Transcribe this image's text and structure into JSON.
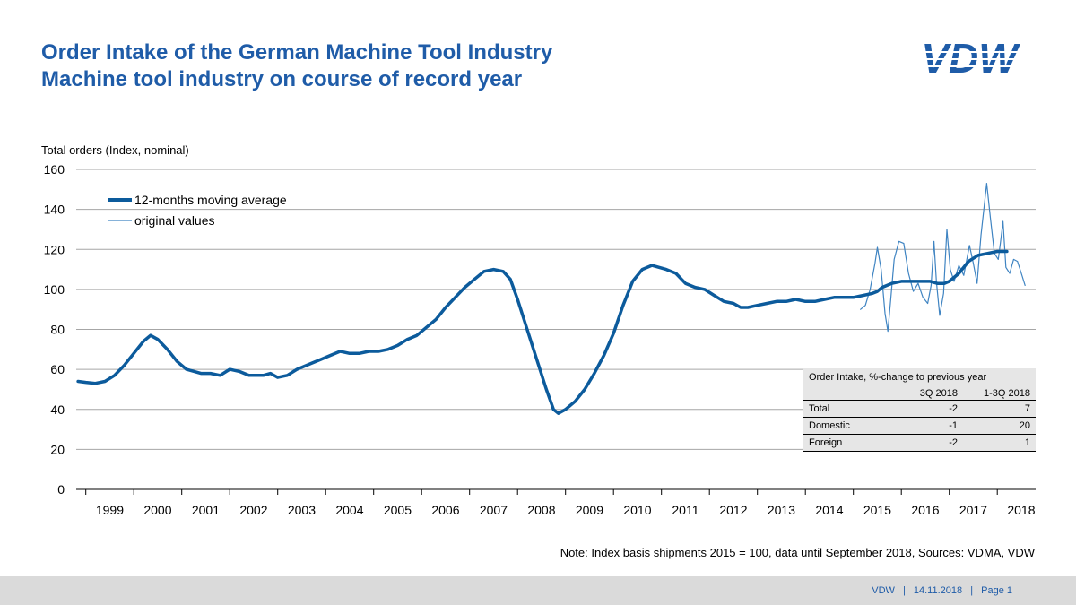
{
  "header": {
    "title_line1": "Order Intake of the German Machine Tool Industry",
    "title_line2": "Machine tool industry on course of record year",
    "logo_text": "VDW"
  },
  "note": "Note: Index basis shipments 2015 = 100, data until September 2018, Sources: VDMA,  VDW",
  "footer": {
    "org": "VDW",
    "date": "14.11.2018",
    "page": "Page 1",
    "sep": "|"
  },
  "table": {
    "caption": "Order Intake, %-change to previous year",
    "columns": [
      "",
      "3Q 2018",
      "1-3Q 2018"
    ],
    "rows": [
      {
        "label": "Total",
        "q3": "-2",
        "ytd": "7"
      },
      {
        "label": "Domestic",
        "q3": "-1",
        "ytd": "20"
      },
      {
        "label": "Foreign",
        "q3": "-2",
        "ytd": "1"
      }
    ]
  },
  "colors": {
    "accent": "#1f5ca8",
    "series_thick": "#0c5b9c",
    "series_thin": "#3f84c2",
    "grid": "#a6a6a6"
  },
  "chart_data": {
    "type": "line",
    "ylabel": "Total orders (Index,  nominal)",
    "ylim": [
      0,
      160
    ],
    "yticks": [
      0,
      20,
      40,
      60,
      80,
      100,
      120,
      140,
      160
    ],
    "xlim": [
      1998.8,
      2018.8
    ],
    "year_labels": [
      "1999",
      "2000",
      "2001",
      "2002",
      "2003",
      "2004",
      "2005",
      "2006",
      "2007",
      "2008",
      "2009",
      "2010",
      "2011",
      "2012",
      "2013",
      "2014",
      "2015",
      "2016",
      "2017",
      "2018"
    ],
    "legend": {
      "position": "top-left",
      "entries": [
        "12-months moving average",
        "original values"
      ]
    },
    "grid": "horizontal",
    "series": [
      {
        "name": "12-months moving average",
        "points": [
          [
            1998.84,
            54
          ],
          [
            1999.0,
            53.5
          ],
          [
            1999.2,
            53
          ],
          [
            1999.4,
            54
          ],
          [
            1999.6,
            57
          ],
          [
            1999.8,
            62
          ],
          [
            2000.0,
            68
          ],
          [
            2000.2,
            74
          ],
          [
            2000.35,
            77
          ],
          [
            2000.5,
            75
          ],
          [
            2000.7,
            70
          ],
          [
            2000.9,
            64
          ],
          [
            2001.1,
            60
          ],
          [
            2001.4,
            58
          ],
          [
            2001.6,
            58
          ],
          [
            2001.8,
            57
          ],
          [
            2002.0,
            60
          ],
          [
            2002.2,
            59
          ],
          [
            2002.4,
            57
          ],
          [
            2002.7,
            57
          ],
          [
            2002.85,
            58
          ],
          [
            2003.0,
            56
          ],
          [
            2003.2,
            57
          ],
          [
            2003.4,
            60
          ],
          [
            2003.7,
            63
          ],
          [
            2003.9,
            65
          ],
          [
            2004.1,
            67
          ],
          [
            2004.3,
            69
          ],
          [
            2004.5,
            68
          ],
          [
            2004.7,
            68
          ],
          [
            2004.9,
            69
          ],
          [
            2005.1,
            69
          ],
          [
            2005.3,
            70
          ],
          [
            2005.5,
            72
          ],
          [
            2005.7,
            75
          ],
          [
            2005.9,
            77
          ],
          [
            2006.1,
            81
          ],
          [
            2006.3,
            85
          ],
          [
            2006.5,
            91
          ],
          [
            2006.7,
            96
          ],
          [
            2006.9,
            101
          ],
          [
            2007.1,
            105
          ],
          [
            2007.3,
            109
          ],
          [
            2007.5,
            110
          ],
          [
            2007.7,
            109
          ],
          [
            2007.85,
            105
          ],
          [
            2008.0,
            95
          ],
          [
            2008.2,
            80
          ],
          [
            2008.4,
            65
          ],
          [
            2008.6,
            50
          ],
          [
            2008.75,
            40
          ],
          [
            2008.85,
            38
          ],
          [
            2009.0,
            40
          ],
          [
            2009.2,
            44
          ],
          [
            2009.4,
            50
          ],
          [
            2009.6,
            58
          ],
          [
            2009.8,
            67
          ],
          [
            2010.0,
            78
          ],
          [
            2010.2,
            92
          ],
          [
            2010.4,
            104
          ],
          [
            2010.6,
            110
          ],
          [
            2010.8,
            112
          ],
          [
            2010.95,
            111
          ],
          [
            2011.1,
            110
          ],
          [
            2011.3,
            108
          ],
          [
            2011.5,
            103
          ],
          [
            2011.7,
            101
          ],
          [
            2011.9,
            100
          ],
          [
            2012.1,
            97
          ],
          [
            2012.3,
            94
          ],
          [
            2012.5,
            93
          ],
          [
            2012.65,
            91
          ],
          [
            2012.8,
            91
          ],
          [
            2013.0,
            92
          ],
          [
            2013.2,
            93
          ],
          [
            2013.4,
            94
          ],
          [
            2013.6,
            94
          ],
          [
            2013.8,
            95
          ],
          [
            2014.0,
            94
          ],
          [
            2014.2,
            94
          ],
          [
            2014.4,
            95
          ],
          [
            2014.6,
            96
          ],
          [
            2014.8,
            96
          ],
          [
            2015.0,
            96
          ],
          [
            2015.2,
            97
          ],
          [
            2015.4,
            98
          ],
          [
            2015.5,
            99
          ],
          [
            2015.6,
            101
          ],
          [
            2015.8,
            103
          ],
          [
            2016.0,
            104
          ],
          [
            2016.2,
            104
          ],
          [
            2016.4,
            104
          ],
          [
            2016.6,
            104
          ],
          [
            2016.75,
            103
          ],
          [
            2016.9,
            103
          ],
          [
            2017.0,
            104
          ],
          [
            2017.2,
            108
          ],
          [
            2017.4,
            114
          ],
          [
            2017.6,
            117
          ],
          [
            2017.8,
            118
          ],
          [
            2018.0,
            119
          ],
          [
            2018.2,
            119
          ]
        ]
      },
      {
        "name": "original values",
        "points": [
          [
            2015.15,
            90
          ],
          [
            2015.25,
            92
          ],
          [
            2015.35,
            100
          ],
          [
            2015.45,
            113
          ],
          [
            2015.5,
            121
          ],
          [
            2015.58,
            110
          ],
          [
            2015.66,
            88
          ],
          [
            2015.72,
            79
          ],
          [
            2015.78,
            95
          ],
          [
            2015.85,
            115
          ],
          [
            2015.95,
            124
          ],
          [
            2016.05,
            123
          ],
          [
            2016.15,
            108
          ],
          [
            2016.25,
            99
          ],
          [
            2016.35,
            103
          ],
          [
            2016.45,
            96
          ],
          [
            2016.55,
            93
          ],
          [
            2016.62,
            102
          ],
          [
            2016.68,
            124
          ],
          [
            2016.73,
            104
          ],
          [
            2016.8,
            87
          ],
          [
            2016.88,
            98
          ],
          [
            2016.95,
            130
          ],
          [
            2017.02,
            110
          ],
          [
            2017.1,
            104
          ],
          [
            2017.2,
            112
          ],
          [
            2017.3,
            107
          ],
          [
            2017.42,
            122
          ],
          [
            2017.5,
            113
          ],
          [
            2017.58,
            103
          ],
          [
            2017.66,
            127
          ],
          [
            2017.72,
            140
          ],
          [
            2017.78,
            153
          ],
          [
            2017.86,
            135
          ],
          [
            2017.94,
            118
          ],
          [
            2018.02,
            115
          ],
          [
            2018.07,
            124
          ],
          [
            2018.12,
            134
          ],
          [
            2018.18,
            111
          ],
          [
            2018.26,
            108
          ],
          [
            2018.34,
            115
          ],
          [
            2018.42,
            114
          ],
          [
            2018.5,
            108
          ],
          [
            2018.58,
            102
          ]
        ]
      }
    ]
  }
}
